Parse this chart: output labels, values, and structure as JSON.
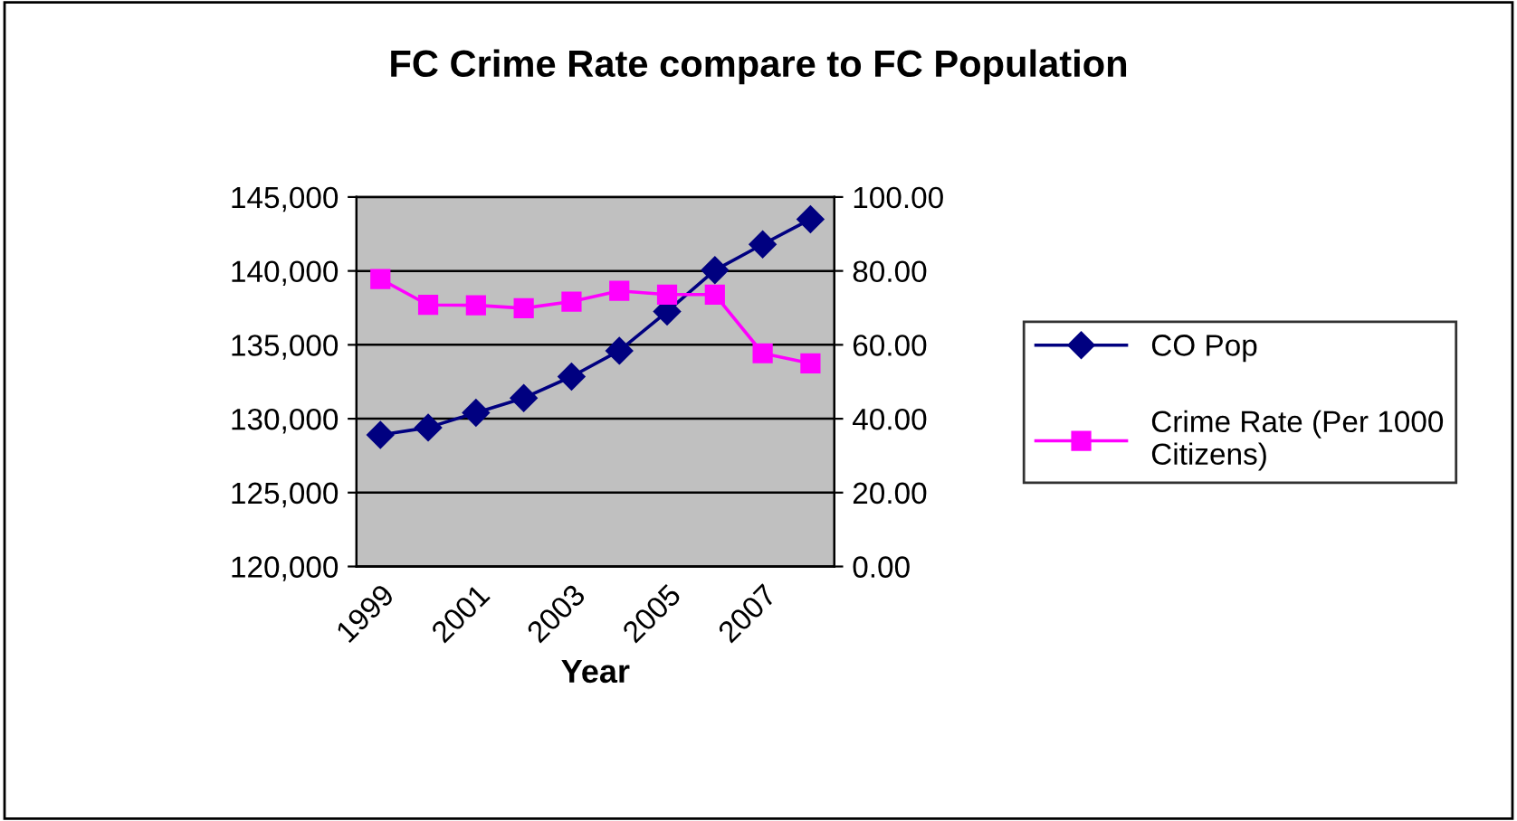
{
  "chart_data": {
    "type": "line",
    "title": "FC Crime Rate compare to FC Population",
    "xlabel": "Year",
    "categories": [
      "1999",
      null,
      "2001",
      null,
      "2003",
      null,
      "2005",
      null,
      "2007",
      null
    ],
    "series": [
      {
        "name": "CO Pop",
        "color": "#000080",
        "marker": "diamond",
        "values": [
          128900,
          129400,
          130400,
          131400,
          132850,
          134600,
          137250,
          140050,
          141800,
          143500
        ]
      },
      {
        "name": "Crime Rate (Per 1000\nCitizens)",
        "color": "#ff00ff",
        "marker": "square",
        "axis": "y2",
        "values": [
          77.8,
          70.8,
          70.7,
          69.9,
          71.7,
          74.6,
          73.6,
          73.6,
          57.7,
          55.0
        ]
      }
    ],
    "ylim": [
      120000,
      145000
    ],
    "yticks": [
      {
        "value": 120000,
        "label": "120,000"
      },
      {
        "value": 125000,
        "label": "125,000"
      },
      {
        "value": 130000,
        "label": "130,000"
      },
      {
        "value": 135000,
        "label": "135,000"
      },
      {
        "value": 140000,
        "label": "140,000"
      },
      {
        "value": 145000,
        "label": "145,000"
      }
    ],
    "y2lim": [
      0,
      100
    ],
    "y2ticks": [
      {
        "value": 0,
        "label": "0.00"
      },
      {
        "value": 20,
        "label": "20.00"
      },
      {
        "value": 40,
        "label": "40.00"
      },
      {
        "value": 60,
        "label": "60.00"
      },
      {
        "value": 80,
        "label": "80.00"
      },
      {
        "value": 100,
        "label": "100.00"
      }
    ],
    "grid": "y",
    "legend": "right",
    "line_style": "solid"
  }
}
